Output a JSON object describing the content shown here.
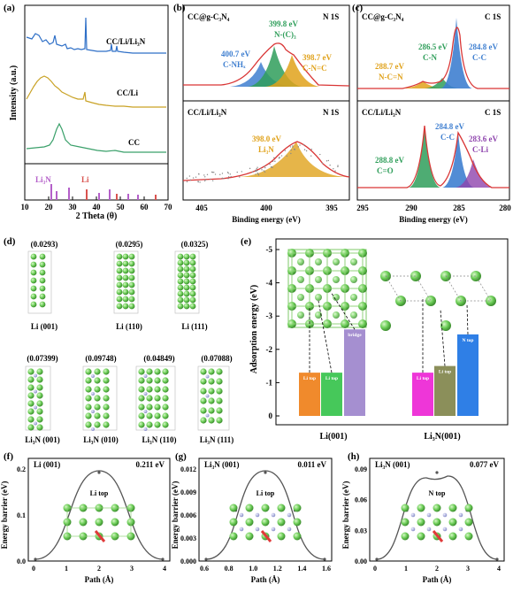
{
  "panels": {
    "a": {
      "label": "(a)",
      "ylabel": "Intensity (a.u.)",
      "xlabel": "2 Theta (θ)",
      "xticks": [
        "10",
        "20",
        "30",
        "40",
        "50",
        "60",
        "70"
      ],
      "series": [
        "CC/Li/Li₃N",
        "CC/Li",
        "CC"
      ],
      "refs": [
        "Li₃N",
        "Li"
      ],
      "colors": {
        "cclin": "#2e6fc7",
        "ccli": "#c9a225",
        "cc": "#3aa06a",
        "li3n": "#b45fc9",
        "li": "#d9534f"
      }
    },
    "b": {
      "label": "(b)",
      "top_title": "CC@g-C₃N₄",
      "top_tag": "N 1S",
      "bottom_title": "CC/Li/Li₃N",
      "bottom_tag": "N 1S",
      "peaks_top": [
        {
          "ev": "399.8 eV",
          "name": "N-(C)₃",
          "color": "#2f9e5a"
        },
        {
          "ev": "400.7 eV",
          "name": "C-NHₓ",
          "color": "#3f7fd0"
        },
        {
          "ev": "398.7 eV",
          "name": "C-N=C",
          "color": "#e0a21b"
        }
      ],
      "peaks_bottom": [
        {
          "ev": "398.0 eV",
          "name": "Li₃N",
          "color": "#e0a21b"
        }
      ],
      "xticks": [
        "405",
        "400",
        "395"
      ],
      "xlabel": "Binding energy (eV)"
    },
    "c": {
      "label": "(c)",
      "top_title": "CC@g-C₃N₄",
      "top_tag": "C 1S",
      "bottom_title": "CC/Li/Li₃N",
      "bottom_tag": "C 1S",
      "peaks_top": [
        {
          "ev": "288.7 eV",
          "name": "N-C=N",
          "color": "#e0a21b"
        },
        {
          "ev": "286.5 eV",
          "name": "C-N",
          "color": "#2f9e5a"
        },
        {
          "ev": "284.8 eV",
          "name": "C-C",
          "color": "#3f7fd0"
        }
      ],
      "peaks_bottom": [
        {
          "ev": "284.8 eV",
          "name": "C-C",
          "color": "#3f7fd0"
        },
        {
          "ev": "283.6 eV",
          "name": "C-Li",
          "color": "#8e44ad"
        },
        {
          "ev": "288.8 eV",
          "name": "C=O",
          "color": "#2f9e5a"
        }
      ],
      "xticks": [
        "295",
        "290",
        "285",
        "280"
      ],
      "xlabel": "Binding energy (eV)"
    },
    "d": {
      "label": "(d)",
      "top": [
        {
          "value": "(0.0293)",
          "name": "Li (001)"
        },
        {
          "value": "(0.0295)",
          "name": "Li (110)"
        },
        {
          "value": "(0.0325)",
          "name": "Li (111)"
        }
      ],
      "bottom": [
        {
          "value": "(0.07399)",
          "name": "Li₃N (001)"
        },
        {
          "value": "(0.09748)",
          "name": "Li₃N (010)"
        },
        {
          "value": "(0.04849)",
          "name": "Li₃N (110)"
        },
        {
          "value": "(0.07088)",
          "name": "Li₃N (111)"
        }
      ]
    },
    "e": {
      "label": "(e)",
      "ylabel": "Adsorption energy (eV)",
      "yticks": [
        "-5",
        "-4",
        "-3",
        "-2",
        "-1",
        "0"
      ],
      "groups": [
        "Li(001)",
        "Li₃N(001)"
      ],
      "bars": [
        {
          "label": "Li top",
          "value": -1.3,
          "color": "#f08a2c"
        },
        {
          "label": "Li top",
          "value": -1.3,
          "color": "#46c85a"
        },
        {
          "label": "bridge",
          "value": -2.6,
          "color": "#a58fd0"
        },
        {
          "label": "Li top",
          "value": -1.3,
          "color": "#ee36d8"
        },
        {
          "label": "Li top",
          "value": -1.5,
          "color": "#8b8f5a"
        },
        {
          "label": "N top",
          "value": -2.45,
          "color": "#2f7fe6"
        }
      ]
    },
    "f": {
      "label": "(f)",
      "title": "Li (001)",
      "energy": "0.211 eV",
      "site": "Li top",
      "ylabel": "Energy barrier (eV)",
      "xlabel": "Path (Å)",
      "yticks": [
        "0.0",
        "0.1",
        "0.2"
      ],
      "xticks": [
        "0",
        "1",
        "2",
        "3",
        "4"
      ]
    },
    "g": {
      "label": "(g)",
      "title": "Li₃N (001)",
      "energy": "0.011 eV",
      "site": "Li top",
      "ylabel": "Energy barrier (eV)",
      "xlabel": "Path (Å)",
      "yticks": [
        "0.000",
        "0.003",
        "0.006",
        "0.009",
        "0.012"
      ],
      "xticks": [
        "0.6",
        "0.8",
        "1.0",
        "1.2",
        "1.4",
        "1.6"
      ]
    },
    "h": {
      "label": "(h)",
      "title": "Li₃N (001)",
      "energy": "0.077 eV",
      "site": "N top",
      "ylabel": "Energy barrier (eV)",
      "xlabel": "Path (Å)",
      "yticks": [
        "0.00",
        "0.03",
        "0.06",
        "0.09"
      ],
      "xticks": [
        "0",
        "1",
        "2",
        "3",
        "4"
      ]
    }
  }
}
